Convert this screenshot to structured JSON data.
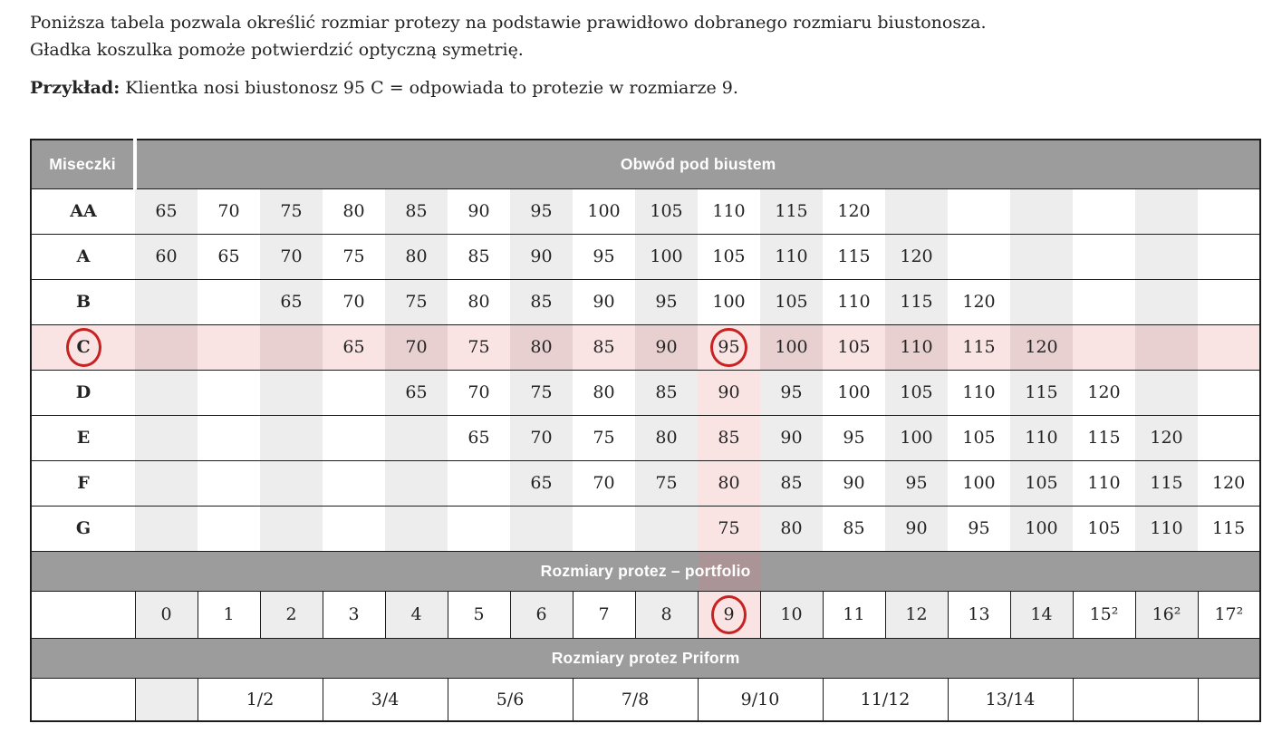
{
  "intro": {
    "line1": "Poniższa tabela pozwala określić rozmiar protezy na podstawie prawidłowo dobranego rozmiaru biustonosza.",
    "line2": "Gładka koszulka pomoże potwierdzić optyczną symetrię.",
    "example_label": "Przykład:",
    "example_text": " Klientka nosi biustonosz 95 C = odpowiada to protezie w rozmiarze 9."
  },
  "colors": {
    "band_gray": "#9c9c9c",
    "stripe_gray": "#ededed",
    "pink_light": "#fae3e3",
    "pink_dusty": "#e8d0d1",
    "band_pink": "#ab9495",
    "ring_red": "#c62222",
    "border_black": "#1c1c1c",
    "text": "#242424"
  },
  "table": {
    "columns": 18,
    "highlight_col": 9,
    "header": {
      "cups": "Miseczki",
      "band": "Obwód pod biustem"
    },
    "cup_rows": [
      {
        "cup": "AA",
        "start": 0,
        "values": [
          "65",
          "70",
          "75",
          "80",
          "85",
          "90",
          "95",
          "100",
          "105",
          "110",
          "115",
          "120"
        ]
      },
      {
        "cup": "A",
        "start": 0,
        "values": [
          "60",
          "65",
          "70",
          "75",
          "80",
          "85",
          "90",
          "95",
          "100",
          "105",
          "110",
          "115",
          "120"
        ]
      },
      {
        "cup": "B",
        "start": 2,
        "values": [
          "65",
          "70",
          "75",
          "80",
          "85",
          "90",
          "95",
          "100",
          "105",
          "110",
          "115",
          "120"
        ]
      },
      {
        "cup": "C",
        "start": 3,
        "values": [
          "65",
          "70",
          "75",
          "80",
          "85",
          "90",
          "95",
          "100",
          "105",
          "110",
          "115",
          "120"
        ],
        "row_highlight": true,
        "circle_cup": true,
        "circle_value": "95"
      },
      {
        "cup": "D",
        "start": 4,
        "values": [
          "65",
          "70",
          "75",
          "80",
          "85",
          "90",
          "95",
          "100",
          "105",
          "110",
          "115",
          "120"
        ],
        "col_highlight": true
      },
      {
        "cup": "E",
        "start": 5,
        "values": [
          "65",
          "70",
          "75",
          "80",
          "85",
          "90",
          "95",
          "100",
          "105",
          "110",
          "115",
          "120"
        ],
        "col_highlight": true
      },
      {
        "cup": "F",
        "start": 6,
        "values": [
          "65",
          "70",
          "75",
          "80",
          "85",
          "90",
          "95",
          "100",
          "105",
          "110",
          "115",
          "120"
        ],
        "col_highlight": true
      },
      {
        "cup": "G",
        "start": 9,
        "values": [
          "75",
          "80",
          "85",
          "90",
          "95",
          "100",
          "105",
          "110",
          "115"
        ],
        "col_highlight": true
      }
    ],
    "portfolio_band": "Rozmiary protez – portfolio",
    "sizes": [
      "0",
      "1",
      "2",
      "3",
      "4",
      "5",
      "6",
      "7",
      "8",
      "9",
      "10",
      "11",
      "12",
      "13",
      "14",
      "15²",
      "16²",
      "17²"
    ],
    "circled_size": "9",
    "priform_band": "Rozmiary protez Priform",
    "priform_groups": [
      {
        "label": "",
        "span": 1
      },
      {
        "label": "1/2",
        "span": 2
      },
      {
        "label": "3/4",
        "span": 2
      },
      {
        "label": "5/6",
        "span": 2
      },
      {
        "label": "7/8",
        "span": 2
      },
      {
        "label": "9/10",
        "span": 2
      },
      {
        "label": "11/12",
        "span": 2
      },
      {
        "label": "13/14",
        "span": 2
      },
      {
        "label": "",
        "span": 2
      },
      {
        "label": "",
        "span": 1
      }
    ]
  }
}
